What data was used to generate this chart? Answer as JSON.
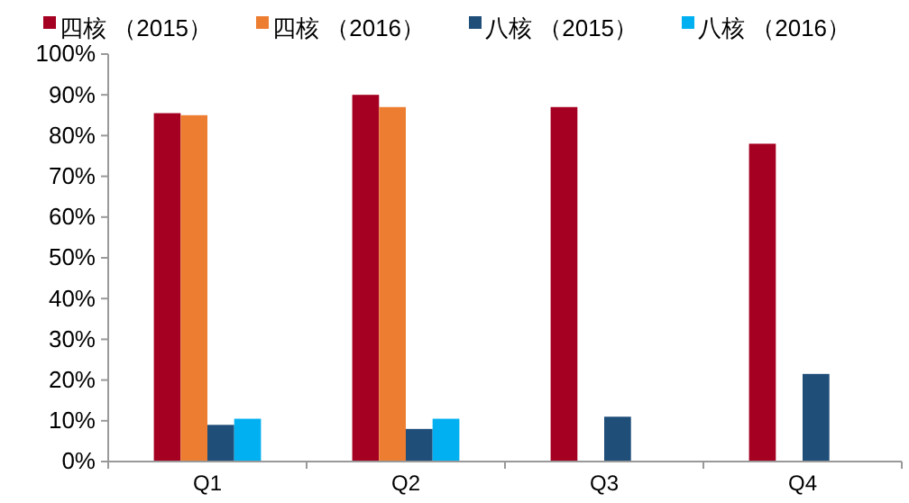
{
  "chart_data": {
    "type": "bar",
    "categories": [
      "Q1",
      "Q2",
      "Q3",
      "Q4"
    ],
    "series": [
      {
        "name": "四核 （2015）",
        "color": "#a50021",
        "values": [
          85.5,
          90,
          87,
          78
        ]
      },
      {
        "name": "四核 （2016）",
        "color": "#ed7d31",
        "values": [
          85,
          87,
          null,
          null
        ]
      },
      {
        "name": "八核 （2015）",
        "color": "#1f4e79",
        "values": [
          9,
          8,
          11,
          21.5
        ]
      },
      {
        "name": "八核 （2016）",
        "color": "#00b0f0",
        "values": [
          10.5,
          10.5,
          null,
          null
        ]
      }
    ],
    "ylim": [
      0,
      100
    ],
    "yticks": [
      {
        "value": 0,
        "label": "0%"
      },
      {
        "value": 10,
        "label": "10%"
      },
      {
        "value": 20,
        "label": "20%"
      },
      {
        "value": 30,
        "label": "30%"
      },
      {
        "value": 40,
        "label": "40%"
      },
      {
        "value": 50,
        "label": "50%"
      },
      {
        "value": 60,
        "label": "60%"
      },
      {
        "value": 70,
        "label": "70%"
      },
      {
        "value": 80,
        "label": "80%"
      },
      {
        "value": 90,
        "label": "90%"
      },
      {
        "value": 100,
        "label": "100%"
      }
    ],
    "grid": false,
    "legend": "top"
  }
}
